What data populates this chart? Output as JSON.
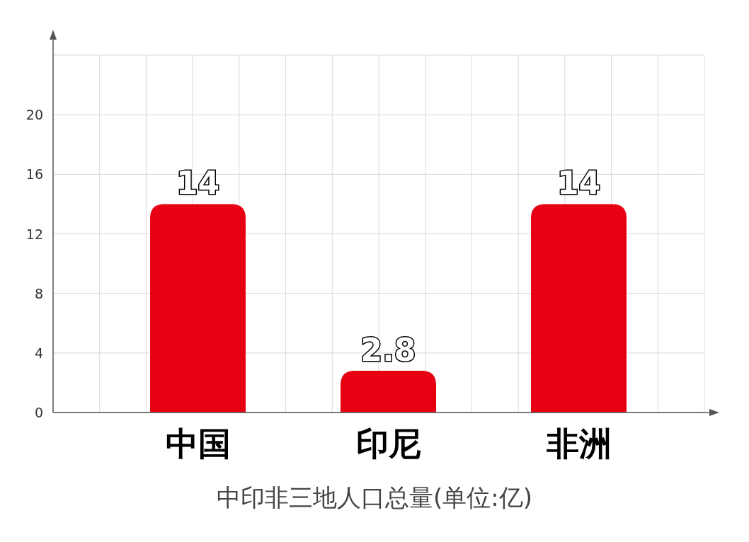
{
  "chart_data": {
    "type": "bar",
    "xlabel": "中印非三地人口总量(单位:亿)",
    "categories": [
      "中国",
      "印尼",
      "非洲"
    ],
    "values": [
      14,
      2.8,
      14
    ],
    "color": "#e60012",
    "ylim": [
      0,
      24
    ],
    "yticks": [
      0,
      4,
      8,
      12,
      16,
      20,
      {
        "value": 24,
        "label": null
      }
    ],
    "grid": true,
    "data_labels": true
  }
}
